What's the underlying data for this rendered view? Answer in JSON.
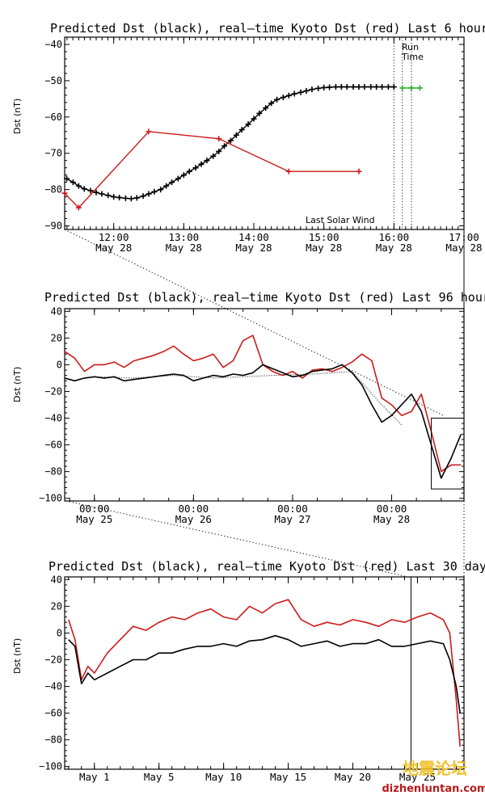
{
  "chart_data": [
    {
      "id": "last6h",
      "type": "line",
      "title": "Predicted Dst (black), real—time Kyoto Dst (red)  Last 6 hours",
      "ylabel": "Dst (nT)",
      "xlabel": "",
      "xlim": [
        11.3,
        17.0
      ],
      "ylim": [
        -91,
        -38
      ],
      "yticks": [
        -90,
        -80,
        -70,
        -60,
        -50,
        -40
      ],
      "ytick_labels": [
        "−90",
        "−80",
        "−70",
        "−60",
        "−50",
        "−40"
      ],
      "xticks": [
        12,
        13,
        14,
        15,
        16,
        17
      ],
      "xtick_labels": [
        "12:00",
        "13:00",
        "14:00",
        "15:00",
        "16:00",
        "17:00"
      ],
      "xtick_sublabels": [
        "May 28",
        "May 28",
        "May 28",
        "May 28",
        "May 28",
        "May 28"
      ],
      "annotations": {
        "run_time": [
          "Run",
          "Time"
        ],
        "last_solar_wind": "Last Solar Wind"
      },
      "vlines": [
        16.0,
        16.12,
        16.25
      ],
      "series": [
        {
          "name": "Predicted Dst",
          "color": "#000000",
          "marker": "plus",
          "x": [
            11.33,
            11.42,
            11.5,
            11.58,
            11.67,
            11.75,
            11.83,
            11.92,
            12.0,
            12.08,
            12.17,
            12.25,
            12.33,
            12.42,
            12.5,
            12.58,
            12.67,
            12.75,
            12.83,
            12.92,
            13.0,
            13.08,
            13.17,
            13.25,
            13.33,
            13.42,
            13.5,
            13.58,
            13.67,
            13.75,
            13.83,
            13.92,
            14.0,
            14.08,
            14.17,
            14.25,
            14.33,
            14.42,
            14.5,
            14.58,
            14.67,
            14.75,
            14.83,
            14.92,
            15.0,
            15.08,
            15.17,
            15.25,
            15.33,
            15.42,
            15.5,
            15.58,
            15.67,
            15.75,
            15.83,
            15.92,
            16.0
          ],
          "y": [
            -77,
            -78,
            -79,
            -79.8,
            -80.3,
            -80.8,
            -81.2,
            -81.6,
            -82,
            -82.2,
            -82.4,
            -82.5,
            -82.3,
            -81.8,
            -81.2,
            -80.6,
            -80,
            -79,
            -78,
            -77,
            -76,
            -75,
            -74,
            -73,
            -72,
            -70.8,
            -69.5,
            -68,
            -66.5,
            -65,
            -63.5,
            -62,
            -60.5,
            -59,
            -57.5,
            -56.2,
            -55.2,
            -54.6,
            -54.1,
            -53.6,
            -53.2,
            -52.8,
            -52.4,
            -52.1,
            -51.9,
            -51.8,
            -51.7,
            -51.7,
            -51.7,
            -51.7,
            -51.7,
            -51.7,
            -51.7,
            -51.7,
            -51.7,
            -51.7,
            -51.7
          ]
        },
        {
          "name": "Predicted Dst (after last solar wind)",
          "color": "#22aa22",
          "marker": "plus",
          "x": [
            16.12,
            16.25,
            16.37
          ],
          "y": [
            -52,
            -52,
            -52
          ]
        },
        {
          "name": "Kyoto Dst",
          "color": "#cc1a1a",
          "marker": "plus",
          "x": [
            11.3,
            11.5,
            12.5,
            13.5,
            14.5,
            15.5
          ],
          "y": [
            -81,
            -85,
            -64,
            -66,
            -75,
            -75
          ]
        }
      ]
    },
    {
      "id": "last96h",
      "type": "line",
      "title": "Predicted Dst (black), real—time Kyoto Dst (red)  Last 96 hours",
      "ylabel": "Dst (nT)",
      "xlabel": "",
      "xlim": [
        -0.3,
        3.73
      ],
      "ylim": [
        -102,
        42
      ],
      "yticks": [
        -100,
        -80,
        -60,
        -40,
        -20,
        0,
        20,
        40
      ],
      "ytick_labels": [
        "−100",
        "−80",
        "−60",
        "−40",
        "−20",
        "0",
        "20",
        "40"
      ],
      "xticks": [
        0,
        1,
        2,
        3
      ],
      "xtick_labels": [
        "00:00",
        "00:00",
        "00:00",
        "00:00"
      ],
      "xtick_sublabels": [
        "May 25",
        "May 26",
        "May 27",
        "May 28"
      ],
      "series": [
        {
          "name": "Kyoto Dst",
          "color": "#cc1a1a",
          "x": [
            -0.3,
            -0.2,
            -0.1,
            0.0,
            0.1,
            0.2,
            0.3,
            0.4,
            0.5,
            0.6,
            0.7,
            0.8,
            0.9,
            1.0,
            1.1,
            1.2,
            1.3,
            1.4,
            1.5,
            1.6,
            1.7,
            1.8,
            1.9,
            2.0,
            2.1,
            2.2,
            2.3,
            2.4,
            2.5,
            2.6,
            2.7,
            2.8,
            2.9,
            3.0,
            3.1,
            3.2,
            3.3,
            3.4,
            3.5,
            3.6,
            3.7
          ],
          "y": [
            10,
            5,
            -5,
            0,
            0,
            2,
            -2,
            3,
            5,
            7,
            10,
            14,
            8,
            3,
            5,
            8,
            -2,
            3,
            18,
            22,
            0,
            -5,
            -8,
            -5,
            -10,
            -4,
            -3,
            -5,
            -2,
            2,
            8,
            3,
            -25,
            -30,
            -38,
            -35,
            -22,
            -50,
            -80,
            -75,
            -75
          ]
        },
        {
          "name": "Predicted Dst",
          "color": "#000000",
          "x": [
            -0.3,
            -0.2,
            -0.1,
            0.0,
            0.1,
            0.2,
            0.3,
            0.4,
            0.5,
            0.6,
            0.7,
            0.8,
            0.9,
            1.0,
            1.1,
            1.2,
            1.3,
            1.4,
            1.5,
            1.6,
            1.7,
            1.8,
            1.9,
            2.0,
            2.1,
            2.2,
            2.3,
            2.4,
            2.5,
            2.6,
            2.7,
            2.8,
            2.9,
            3.0,
            3.1,
            3.2,
            3.3,
            3.4,
            3.5,
            3.6,
            3.7
          ],
          "y": [
            -10,
            -12,
            -10,
            -9,
            -10,
            -9,
            -12,
            -11,
            -10,
            -9,
            -8,
            -7,
            -8,
            -12,
            -10,
            -8,
            -9,
            -7,
            -8,
            -6,
            0,
            -3,
            -6,
            -9,
            -8,
            -5,
            -4,
            -3,
            0,
            -6,
            -15,
            -30,
            -43,
            -38,
            -30,
            -22,
            -35,
            -60,
            -85,
            -70,
            -52
          ]
        },
        {
          "name": "Predicted Dst (dotted)",
          "color": "#000000",
          "style": "dotted",
          "x": [
            0.0,
            0.4,
            0.8,
            1.2,
            1.5,
            1.8,
            2.2,
            2.6,
            2.9,
            3.1
          ],
          "y": [
            -9,
            -10,
            -8,
            -10,
            -9,
            -8,
            -7,
            -5,
            -30,
            -45
          ]
        }
      ],
      "zoom_box": {
        "x": [
          3.4,
          3.73
        ],
        "y": [
          -93,
          -40
        ]
      }
    },
    {
      "id": "last30d",
      "type": "line",
      "title": "Predicted Dst (black), real—time Kyoto Dst (red)  Last 30 days",
      "ylabel": "Dst (nT)",
      "xlabel": "",
      "xlim": [
        -2.3,
        28.6
      ],
      "ylim": [
        -102,
        42
      ],
      "yticks": [
        -100,
        -80,
        -60,
        -40,
        -20,
        0,
        20,
        40
      ],
      "ytick_labels": [
        "−100",
        "−80",
        "−60",
        "−40",
        "−20",
        "0",
        "20",
        "40"
      ],
      "xticks": [
        0,
        5,
        10,
        15,
        20,
        25
      ],
      "xtick_labels": [
        "May  1",
        "May  5",
        "May 10",
        "May 15",
        "May 20",
        "May 25"
      ],
      "vlines": [
        24.5
      ],
      "series": [
        {
          "name": "Kyoto Dst",
          "color": "#cc1a1a",
          "x": [
            -2,
            -1.5,
            -1,
            -0.5,
            0,
            1,
            2,
            3,
            4,
            5,
            6,
            7,
            8,
            9,
            10,
            11,
            12,
            13,
            14,
            15,
            16,
            17,
            18,
            19,
            20,
            21,
            22,
            23,
            24,
            25,
            26,
            27,
            27.5,
            28,
            28.3
          ],
          "y": [
            10,
            -5,
            -35,
            -25,
            -30,
            -15,
            -5,
            5,
            2,
            8,
            12,
            10,
            15,
            18,
            12,
            10,
            20,
            15,
            22,
            25,
            10,
            5,
            8,
            6,
            10,
            8,
            5,
            10,
            8,
            12,
            15,
            10,
            0,
            -50,
            -85
          ]
        },
        {
          "name": "Predicted Dst",
          "color": "#000000",
          "x": [
            -2,
            -1.5,
            -1,
            -0.5,
            0,
            1,
            2,
            3,
            4,
            5,
            6,
            7,
            8,
            9,
            10,
            11,
            12,
            13,
            14,
            15,
            16,
            17,
            18,
            19,
            20,
            21,
            22,
            23,
            24,
            25,
            26,
            27,
            27.5,
            28,
            28.3
          ],
          "y": [
            -5,
            -10,
            -38,
            -30,
            -35,
            -30,
            -25,
            -20,
            -20,
            -15,
            -15,
            -12,
            -10,
            -10,
            -8,
            -10,
            -6,
            -5,
            -2,
            -5,
            -10,
            -8,
            -6,
            -10,
            -8,
            -8,
            -5,
            -10,
            -10,
            -8,
            -6,
            -8,
            -20,
            -40,
            -60
          ]
        }
      ]
    }
  ],
  "watermark": {
    "main": "地震论坛",
    "url": "dizhenluntan.com"
  }
}
